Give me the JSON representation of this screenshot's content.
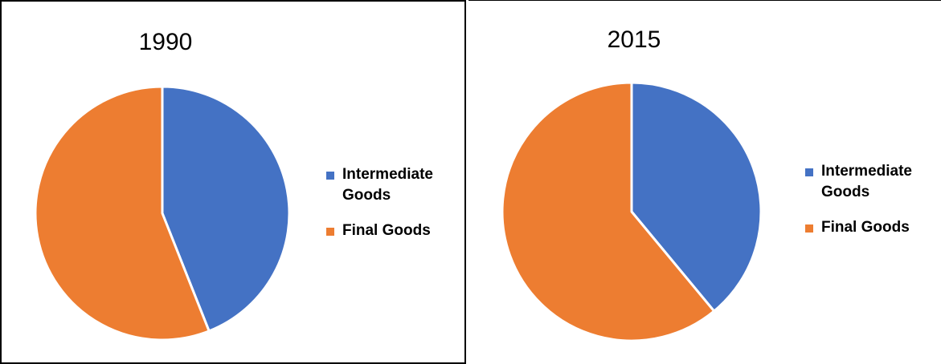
{
  "chart_data": [
    {
      "type": "pie",
      "title": "1990",
      "categories": [
        "Intermediate Goods",
        "Final Goods"
      ],
      "values": [
        44,
        56
      ],
      "colors": [
        "#4472C4",
        "#ED7D31"
      ],
      "legend_position": "right"
    },
    {
      "type": "pie",
      "title": "2015",
      "categories": [
        "Intermediate Goods",
        "Final Goods"
      ],
      "values": [
        39,
        61
      ],
      "colors": [
        "#4472C4",
        "#ED7D31"
      ],
      "legend_position": "right"
    }
  ]
}
